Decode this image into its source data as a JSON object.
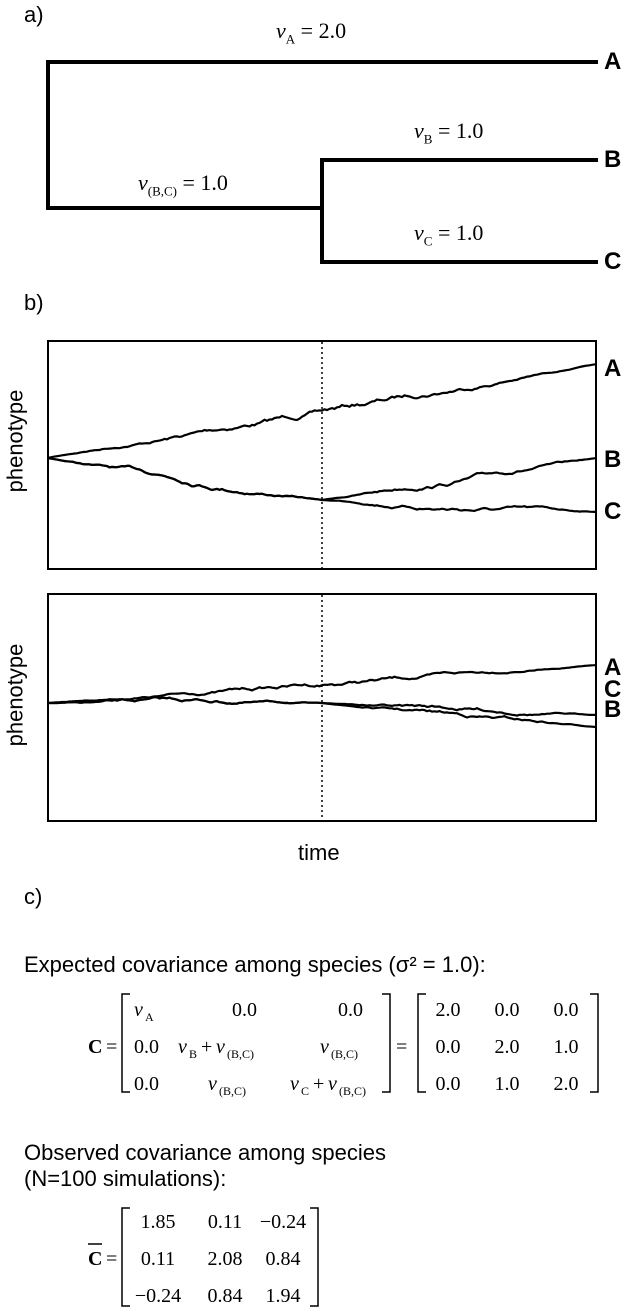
{
  "panel_a": {
    "label": "a)",
    "tips": [
      "A",
      "B",
      "C"
    ],
    "branches": [
      {
        "var": "v",
        "sub": "A",
        "value": "= 2.0"
      },
      {
        "var": "v",
        "sub": "B",
        "value": "= 1.0"
      },
      {
        "var": "v",
        "sub": "C",
        "value": "= 1.0"
      },
      {
        "var": "v",
        "sub": "(B,C)",
        "value": "= 1.0"
      }
    ]
  },
  "panel_b": {
    "label": "b)",
    "ylabel": "phenotype",
    "xlabel": "time",
    "top_tips": [
      "A",
      "B",
      "C"
    ],
    "bottom_tips": [
      "A",
      "C",
      "B"
    ]
  },
  "panel_c": {
    "label": "c)",
    "expected_caption": "Expected covariance among species (σ² = 1.0):",
    "expected_symbol": "C",
    "expected_symbolic": [
      [
        "v_A",
        "0.0",
        "0.0"
      ],
      [
        "0.0",
        "v_B + v_(B,C)",
        "v_(B,C)"
      ],
      [
        "0.0",
        "v_(B,C)",
        "v_C + v_(B,C)"
      ]
    ],
    "expected_numeric": [
      [
        "2.0",
        "0.0",
        "0.0"
      ],
      [
        "0.0",
        "2.0",
        "1.0"
      ],
      [
        "0.0",
        "1.0",
        "2.0"
      ]
    ],
    "observed_caption_line1": "Observed covariance among species",
    "observed_caption_line2": "(N=100 simulations):",
    "observed_symbol": "C",
    "observed_numeric": [
      [
        "1.85",
        "0.11",
        "−0.24"
      ],
      [
        "0.11",
        "2.08",
        "0.84"
      ],
      [
        "−0.24",
        "0.84",
        "1.94"
      ]
    ]
  }
}
